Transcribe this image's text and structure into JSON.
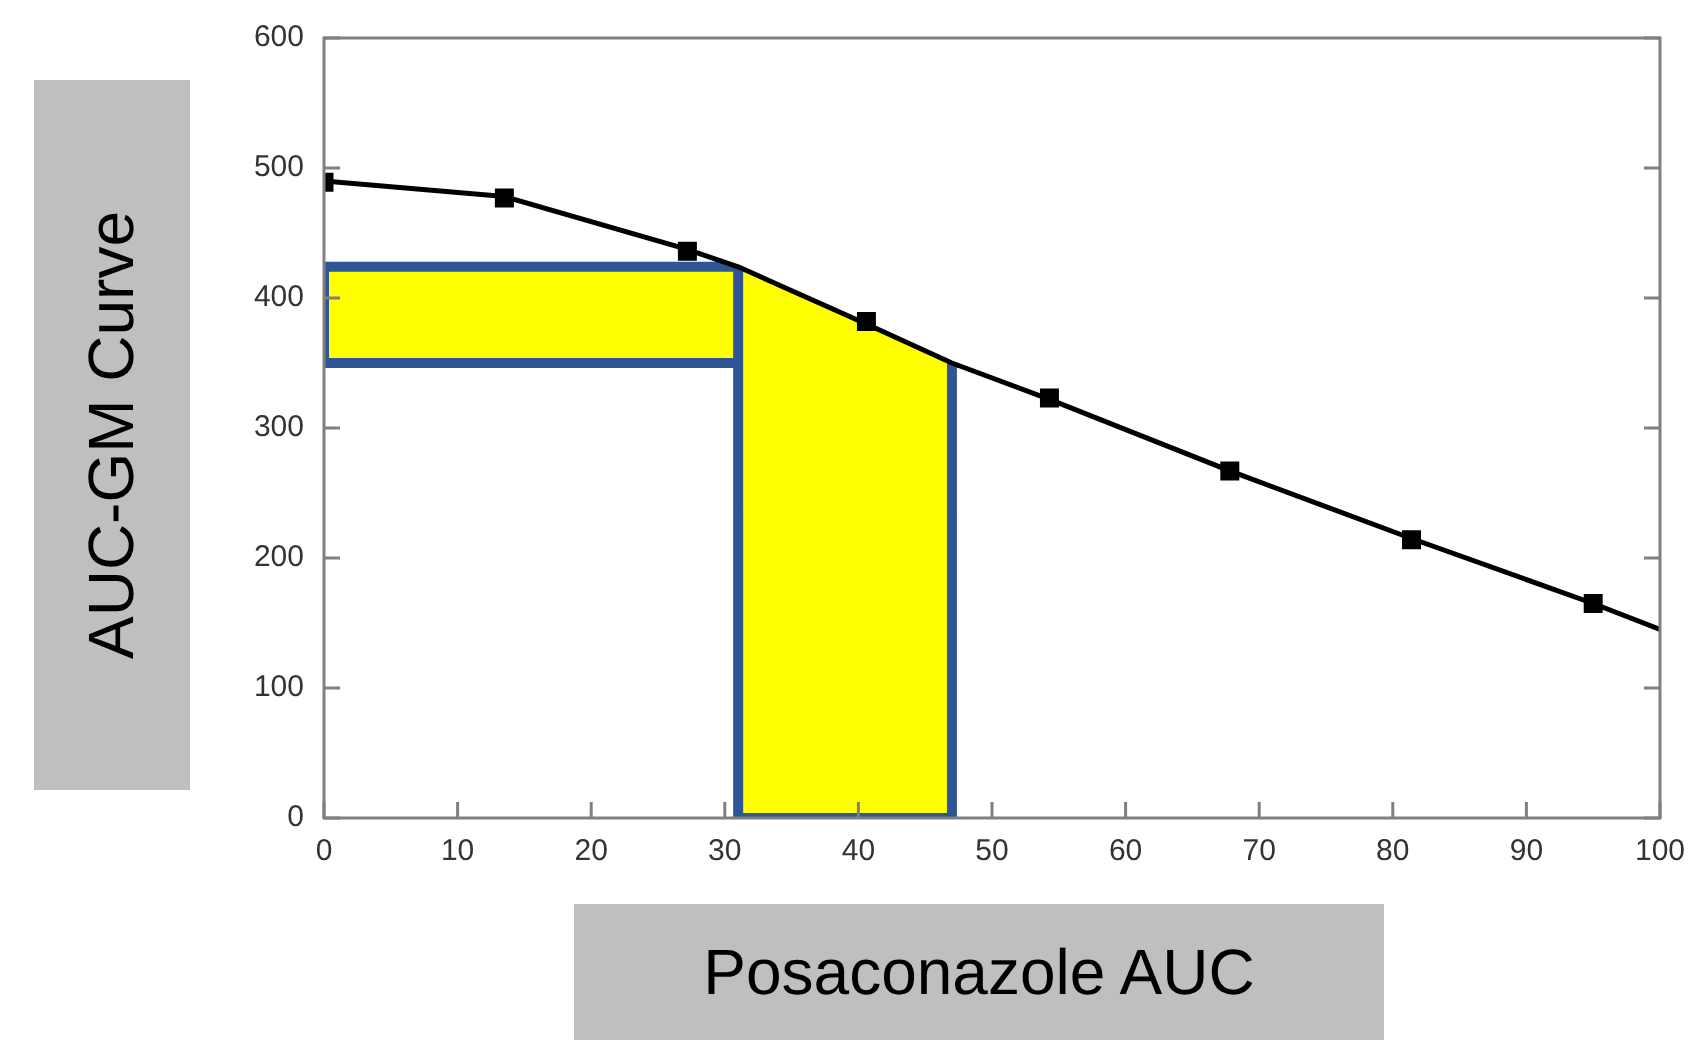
{
  "chart_data": {
    "type": "line",
    "xlabel": "Posaconazole AUC",
    "ylabel": "AUC-GM Curve",
    "xlim": [
      0,
      100
    ],
    "xticks": [
      0,
      10,
      20,
      30,
      40,
      50,
      60,
      70,
      80,
      90,
      100
    ],
    "ylim": [
      0,
      600
    ],
    "yticks": [
      0,
      100,
      200,
      300,
      400,
      500,
      600
    ],
    "grid": false,
    "legend": false,
    "bands": [
      {
        "axis": "y",
        "from": 350,
        "to": 424,
        "color": "#ffff00"
      },
      {
        "axis": "x",
        "from": 31,
        "to": 47,
        "color": "#ffff00"
      }
    ],
    "series": [
      {
        "color": "#000000",
        "marker": "none",
        "x": [
          0,
          13.5,
          27,
          31,
          40.6,
          47,
          54.3,
          67.8,
          81.4,
          95,
          100
        ],
        "values": [
          490,
          478,
          438,
          424,
          380,
          350,
          322,
          267,
          215,
          165,
          145
        ]
      },
      {
        "type": "scatter",
        "color": "#000000",
        "marker": "square",
        "x": [
          0,
          13.5,
          27.2,
          40.6,
          54.3,
          67.8,
          81.4,
          95
        ],
        "values": [
          489,
          477,
          436,
          382,
          323,
          267,
          214,
          165
        ]
      }
    ]
  }
}
